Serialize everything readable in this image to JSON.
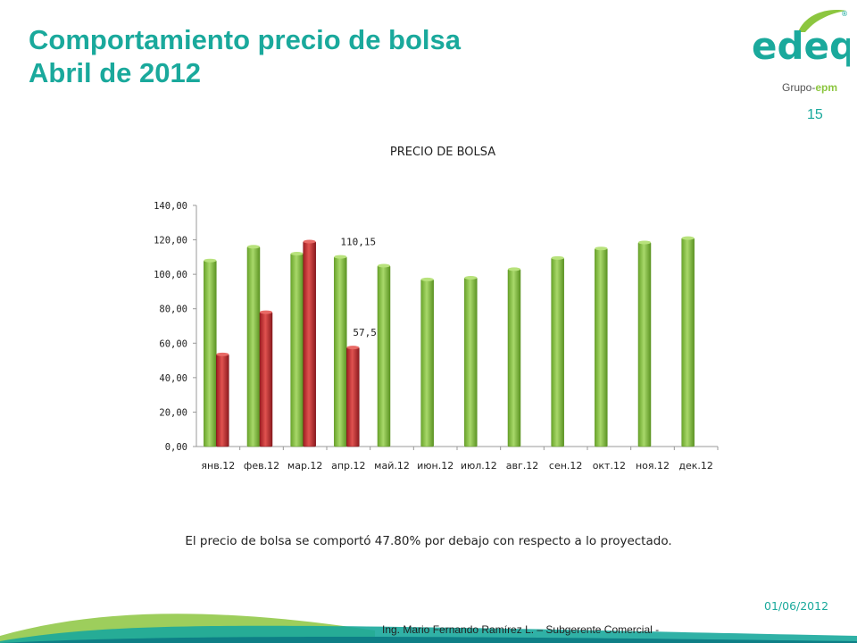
{
  "slide": {
    "title_line1": "Comportamiento precio de bolsa",
    "title_line2": "Abril de 2012",
    "page_number": "15",
    "caption": "El precio de bolsa se comportó 47.80% por debajo con respecto a lo proyectado.",
    "date": "01/06/2012",
    "footer": "Ing. Mario Fernando Ramírez L. – Subgerente Comercial -",
    "logo": {
      "brand": "edeq",
      "group": "Grupo-",
      "group_brand": "epm",
      "registered": "®"
    }
  },
  "colors": {
    "accent": "#1aa99c",
    "green_series": "#8cc63f",
    "red_series": "#c1272d"
  },
  "chart_data": {
    "type": "bar",
    "title": "PRECIO DE BOLSA",
    "categories": [
      "янв.12",
      "фев.12",
      "мар.12",
      "апр.12",
      "май.12",
      "июн.12",
      "июл.12",
      "авг.12",
      "сен.12",
      "окт.12",
      "ноя.12",
      "дек.12"
    ],
    "series": [
      {
        "values": [
          108,
          116,
          112,
          110.15,
          105,
          97,
          98,
          103,
          109.5,
          115,
          118.5,
          121
        ],
        "color": "#8cc63f"
      },
      {
        "values": [
          53.5,
          78,
          119,
          57.5,
          null,
          null,
          null,
          null,
          null,
          null,
          null,
          null
        ],
        "color": "#c1272d"
      }
    ],
    "data_labels": [
      {
        "series": 0,
        "index": 3,
        "text": "110,15"
      },
      {
        "series": 1,
        "index": 3,
        "text": "57,5"
      }
    ],
    "yticks": [
      "0,00",
      "20,00",
      "40,00",
      "60,00",
      "80,00",
      "100,00",
      "120,00",
      "140,00"
    ],
    "ylim": [
      0,
      140
    ],
    "grid": false,
    "legend": "none"
  }
}
